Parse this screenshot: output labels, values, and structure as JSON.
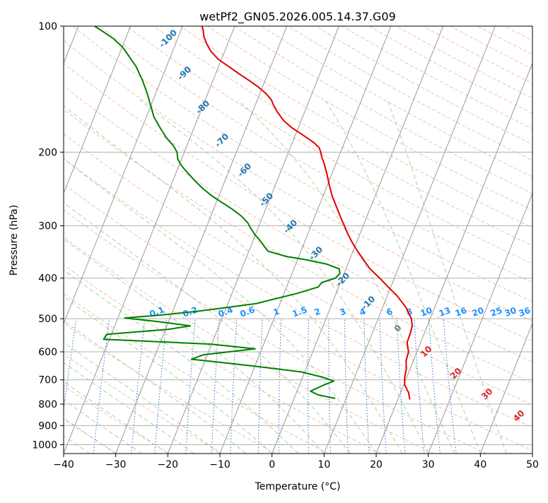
{
  "chart_data": {
    "type": "line",
    "title": "wetPf2_GN05.2026.005.14.37.G09",
    "xlabel": "Temperature (°C)",
    "ylabel": "Pressure (hPa)",
    "xlim": [
      -40,
      50
    ],
    "ylim": [
      1050,
      100
    ],
    "y_scale": "log",
    "x_ticks": [
      "−40",
      "−30",
      "−20",
      "−10",
      "0",
      "10",
      "20",
      "30",
      "40",
      "50"
    ],
    "y_ticks": [
      100,
      200,
      300,
      400,
      500,
      600,
      700,
      800,
      900,
      1000
    ],
    "grid": true,
    "colors": {
      "temperature": "#e00000",
      "dewpoint": "#008000",
      "dry_adiabat": "#f5a284",
      "moist_adiabat": "#8fc98f",
      "mixing_ratio": "#1f77d4",
      "isotherm": "#999999",
      "label_blue": "#1f77b4",
      "label_mix": "#1e90ff",
      "label_red": "#d62728"
    },
    "series": [
      {
        "points": [
          [
            22.3,
            780
          ],
          [
            21.5,
            750
          ],
          [
            20.2,
            720
          ],
          [
            19.6,
            690
          ],
          [
            19.3,
            660
          ],
          [
            18.6,
            630
          ],
          [
            18.4,
            600
          ],
          [
            17.4,
            570
          ],
          [
            17.3,
            540
          ],
          [
            17.1,
            520
          ],
          [
            16.4,
            500
          ],
          [
            14.5,
            470
          ],
          [
            11.8,
            440
          ],
          [
            9.5,
            420
          ],
          [
            7.2,
            400
          ],
          [
            4.6,
            380
          ],
          [
            2.5,
            360
          ],
          [
            0.9,
            345
          ],
          [
            -0.7,
            330
          ],
          [
            -2.2,
            315
          ],
          [
            -3.6,
            300
          ],
          [
            -5.1,
            285
          ],
          [
            -6.6,
            270
          ],
          [
            -8.2,
            255
          ],
          [
            -9.6,
            240
          ],
          [
            -11.0,
            225
          ],
          [
            -12.4,
            212
          ],
          [
            -13.3,
            205
          ],
          [
            -13.8,
            200
          ],
          [
            -14.5,
            195
          ],
          [
            -15.8,
            190
          ],
          [
            -17.5,
            185
          ],
          [
            -19.3,
            180
          ],
          [
            -21.2,
            175
          ],
          [
            -23.4,
            168
          ],
          [
            -25.3,
            160
          ],
          [
            -26.4,
            155
          ],
          [
            -27.3,
            150
          ],
          [
            -28.8,
            145
          ],
          [
            -30.7,
            140
          ],
          [
            -33.0,
            135
          ],
          [
            -35.5,
            130
          ],
          [
            -38.0,
            125
          ],
          [
            -40.6,
            120
          ],
          [
            -42.6,
            115
          ],
          [
            -44.1,
            110
          ],
          [
            -45.1,
            106
          ],
          [
            -45.8,
            102
          ],
          [
            -46.3,
            100
          ]
        ]
      },
      {
        "points": [
          [
            7.9,
            775
          ],
          [
            6.6,
            770
          ],
          [
            4.3,
            760
          ],
          [
            2.6,
            745
          ],
          [
            4.7,
            720
          ],
          [
            6.3,
            705
          ],
          [
            3.9,
            690
          ],
          [
            -0.7,
            670
          ],
          [
            -9.7,
            650
          ],
          [
            -17.3,
            635
          ],
          [
            -22.7,
            625
          ],
          [
            -20.8,
            610
          ],
          [
            -11.3,
            590
          ],
          [
            -20.2,
            575
          ],
          [
            -41.1,
            560
          ],
          [
            -40.9,
            545
          ],
          [
            -29.4,
            530
          ],
          [
            -25.5,
            520
          ],
          [
            -32.0,
            508
          ],
          [
            -38.7,
            498
          ],
          [
            -31.8,
            490
          ],
          [
            -25.3,
            480
          ],
          [
            -19.9,
            470
          ],
          [
            -14.5,
            460
          ],
          [
            -11.8,
            450
          ],
          [
            -7.5,
            435
          ],
          [
            -3.9,
            420
          ],
          [
            -3.6,
            410
          ],
          [
            -1.3,
            400
          ],
          [
            -0.8,
            390
          ],
          [
            -1.3,
            380
          ],
          [
            -4.2,
            370
          ],
          [
            -8.1,
            362
          ],
          [
            -12.4,
            355
          ],
          [
            -16.3,
            345
          ],
          [
            -17.5,
            335
          ],
          [
            -18.7,
            325
          ],
          [
            -20.1,
            315
          ],
          [
            -21.3,
            305
          ],
          [
            -22.4,
            295
          ],
          [
            -24.0,
            285
          ],
          [
            -26.1,
            275
          ],
          [
            -28.6,
            265
          ],
          [
            -31.2,
            255
          ],
          [
            -33.5,
            245
          ],
          [
            -35.6,
            235
          ],
          [
            -37.6,
            225
          ],
          [
            -39.6,
            215
          ],
          [
            -40.7,
            208
          ],
          [
            -41.4,
            200
          ],
          [
            -42.6,
            193
          ],
          [
            -44.5,
            185
          ],
          [
            -46.5,
            175
          ],
          [
            -48.5,
            165
          ],
          [
            -50.0,
            155
          ],
          [
            -51.6,
            145
          ],
          [
            -53.5,
            135
          ],
          [
            -55.8,
            125
          ],
          [
            -58.0,
            118
          ],
          [
            -60.0,
            112
          ],
          [
            -62.4,
            107
          ],
          [
            -64.9,
            103
          ],
          [
            -66.9,
            100
          ]
        ]
      }
    ],
    "isotherm_labels": [
      "-100",
      "-90",
      "-80",
      "-70",
      "-60",
      "-50",
      "-40",
      "-30",
      "-20",
      "-10",
      "0",
      "10",
      "20",
      "30",
      "40"
    ],
    "mixing_ratio_labels": [
      "0.1",
      "0.2",
      "0.4",
      "0.6",
      "1",
      "1.5",
      "2",
      "3",
      "4",
      "6",
      "8",
      "10",
      "13",
      "16",
      "20",
      "25",
      "30",
      "36"
    ]
  }
}
